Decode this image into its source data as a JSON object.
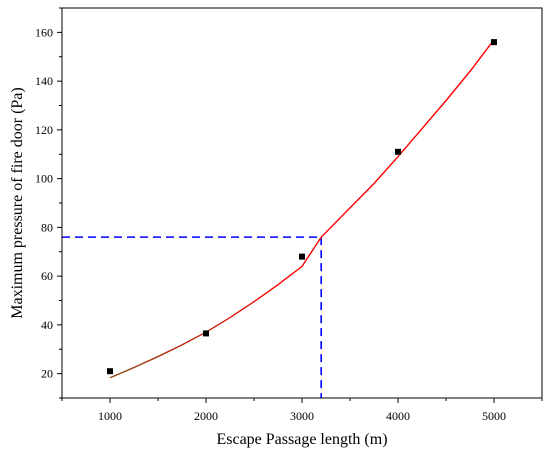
{
  "chart_data": {
    "type": "scatter",
    "title": "",
    "xlabel": "Escape Passage length (m)",
    "ylabel": "Maximum pressure of fire door (Pa)",
    "xlim": [
      500,
      5500
    ],
    "ylim": [
      10,
      170
    ],
    "x_ticks": [
      1000,
      2000,
      3000,
      4000,
      5000
    ],
    "y_ticks": [
      20,
      40,
      60,
      80,
      100,
      120,
      140,
      160
    ],
    "grid": false,
    "series": [
      {
        "type": "scatter",
        "marker": "square",
        "color": "#000000",
        "points": [
          {
            "x": 1000,
            "y": 21
          },
          {
            "x": 2000,
            "y": 36.5
          },
          {
            "x": 3000,
            "y": 68
          },
          {
            "x": 4000,
            "y": 111
          },
          {
            "x": 5000,
            "y": 156
          }
        ]
      },
      {
        "type": "line",
        "style": "fitted curve",
        "color_start": "#8B4513",
        "color_end": "#FF0000",
        "points": [
          {
            "x": 1000,
            "y": 18.3
          },
          {
            "x": 1250,
            "y": 22.5
          },
          {
            "x": 1500,
            "y": 27.0
          },
          {
            "x": 1750,
            "y": 31.8
          },
          {
            "x": 2000,
            "y": 37.0
          },
          {
            "x": 2250,
            "y": 43.0
          },
          {
            "x": 2500,
            "y": 49.5
          },
          {
            "x": 2750,
            "y": 56.5
          },
          {
            "x": 3000,
            "y": 64.0
          },
          {
            "x": 3200,
            "y": 76.0
          },
          {
            "x": 3500,
            "y": 88.0
          },
          {
            "x": 3750,
            "y": 98.0
          },
          {
            "x": 4000,
            "y": 109.0
          },
          {
            "x": 4250,
            "y": 120.5
          },
          {
            "x": 4500,
            "y": 132.0
          },
          {
            "x": 4750,
            "y": 144.0
          },
          {
            "x": 5000,
            "y": 157.0
          }
        ]
      }
    ],
    "reference_lines": {
      "color": "#0000FF",
      "style": "dashed",
      "x": 3200,
      "y": 76
    }
  }
}
